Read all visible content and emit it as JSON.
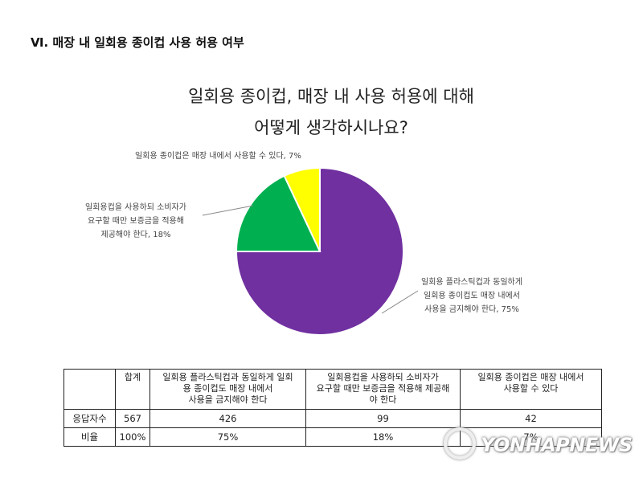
{
  "section_title": "Ⅵ. 매장 내 일회용 종이컵 사용 허용 여부",
  "chart_data": {
    "type": "pie",
    "title": "일회용 종이컵, 매장 내 사용 허용에 대해 어떻게 생각하시나요?",
    "title_lines": [
      "일회용 종이컵, 매장 내 사용 허용에 대해",
      "어떻게 생각하시나요?"
    ],
    "start_angle": "12 o'clock, clockwise",
    "slices": [
      {
        "label": "일회용 플라스틱컵과 동일하게 일회용 종이컵도 매장 내에서 사용을 금지해야 한다",
        "value": 75,
        "count": 426,
        "color": "#7030a0"
      },
      {
        "label": "일회용컵을 사용하되 소비자가 요구할 때만 보증금을 적용해 제공해야 한다",
        "value": 18,
        "count": 99,
        "color": "#00b050"
      },
      {
        "label": "일회용 종이컵은 매장 내에서 사용할 수 있다",
        "value": 7,
        "count": 42,
        "color": "#ffff00"
      }
    ],
    "data_labels": [
      {
        "lines": [
          "일회용 플라스틱컵과 동일하게",
          "일회용 종이컵도 매장 내에서",
          "사용을 금지해야 한다, 75%"
        ]
      },
      {
        "lines": [
          "일회용컵을 사용하되 소비자가",
          "요구할 때만 보증금을 적용해",
          "제공해야 한다, 18%"
        ]
      },
      {
        "lines": [
          "일회용 종이컵은 매장 내에서 사용할 수 있다, 7%"
        ]
      }
    ],
    "legend": "none"
  },
  "table": {
    "headers": [
      "",
      "합계",
      "일회용 플라스틱컵과 동일하게 일회용 종이컵도 매장 내에서 사용을 금지해야 한다",
      "일회용컵을 사용하되 소비자가 요구할 때만 보증금을 적용해 제공해야 한다",
      "일회용 종이컵은 매장 내에서 사용할 수 있다"
    ],
    "header_lines": {
      "c2": [
        "일회용 플라스틱컵과 동일하게 일회",
        "용 종이컵도 매장 내에서",
        "사용을 금지해야 한다"
      ],
      "c3": [
        "일회용컵을 사용하되 소비자가",
        "요구할 때만 보증금을 적용해 제공해",
        "야 한다"
      ],
      "c4": [
        "일회용 종이컵은 매장 내에서",
        "사용할 수 있다"
      ]
    },
    "rows": [
      {
        "label": "응답자수",
        "cells": [
          "567",
          "426",
          "99",
          "42"
        ]
      },
      {
        "label": "비율",
        "cells": [
          "100%",
          "75%",
          "18%",
          "7%"
        ]
      }
    ]
  },
  "watermark": "YONHAPNEWS"
}
